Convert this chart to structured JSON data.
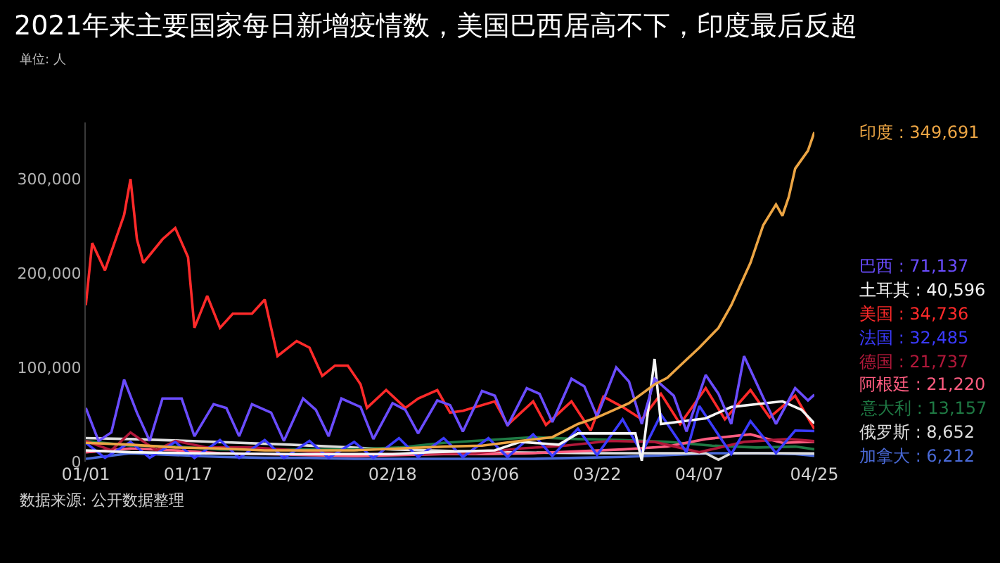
{
  "chart_data": {
    "type": "line",
    "title": "2021年来主要国家每日新增疫情数，美国巴西居高不下，印度最后反超",
    "subtitle": "单位: 人",
    "annotations": [
      "数据来源: 公开数据整理"
    ],
    "xlim": [
      "2021-01-01",
      "2021-04-25"
    ],
    "xticks": [
      {
        "value": "2021-01-01",
        "label": "01/01"
      },
      {
        "value": "2021-01-17",
        "label": "01/17"
      },
      {
        "value": "2021-02-02",
        "label": "02/02"
      },
      {
        "value": "2021-02-18",
        "label": "02/18"
      },
      {
        "value": "2021-03-06",
        "label": "03/06"
      },
      {
        "value": "2021-03-22",
        "label": "03/22"
      },
      {
        "value": "2021-04-07",
        "label": "04/07"
      },
      {
        "value": "2021-04-25",
        "label": "04/25"
      }
    ],
    "ylim": [
      0,
      360000
    ],
    "yticks": [
      0,
      {
        "value": 100000,
        "label": "100,000"
      },
      {
        "value": 200000,
        "label": "200,000"
      },
      {
        "value": 300000,
        "label": "300,000"
      }
    ],
    "series": [
      {
        "name": "印度 :",
        "color": "#eca544",
        "x": [
          "2021-01-01",
          "2021-01-08",
          "2021-01-15",
          "2021-01-22",
          "2021-01-29",
          "2021-02-05",
          "2021-02-12",
          "2021-02-19",
          "2021-02-26",
          "2021-03-04",
          "2021-03-10",
          "2021-03-15",
          "2021-03-19",
          "2021-03-22",
          "2021-03-24",
          "2021-03-27",
          "2021-03-31",
          "2021-04-02",
          "2021-04-04",
          "2021-04-07",
          "2021-04-10",
          "2021-04-12",
          "2021-04-15",
          "2021-04-17",
          "2021-04-19",
          "2021-04-20",
          "2021-04-21",
          "2021-04-22",
          "2021-04-24",
          "2021-04-25"
        ],
        "values": [
          20000,
          18000,
          15000,
          14000,
          12000,
          12000,
          12000,
          14000,
          16000,
          17000,
          22000,
          26000,
          40000,
          47000,
          53000,
          62000,
          82000,
          89000,
          102000,
          121000,
          142000,
          166000,
          211000,
          251000,
          273000,
          261000,
          281000,
          311000,
          330000,
          349691
        ],
        "value_labels": [
          null,
          null,
          null,
          null,
          null,
          null,
          null,
          null,
          null,
          null,
          null,
          null,
          null,
          null,
          null,
          null,
          null,
          null,
          null,
          null,
          null,
          null,
          null,
          null,
          null,
          null,
          null,
          null,
          null,
          "349,691"
        ]
      },
      {
        "name": "巴西 :",
        "color": "#6a4cff",
        "x": [
          "2021-01-01",
          "2021-01-03",
          "2021-01-05",
          "2021-01-07",
          "2021-01-09",
          "2021-01-11",
          "2021-01-13",
          "2021-01-16",
          "2021-01-18",
          "2021-01-21",
          "2021-01-23",
          "2021-01-25",
          "2021-01-27",
          "2021-01-30",
          "2021-02-01",
          "2021-02-04",
          "2021-02-06",
          "2021-02-08",
          "2021-02-10",
          "2021-02-13",
          "2021-02-15",
          "2021-02-18",
          "2021-02-20",
          "2021-02-22",
          "2021-02-25",
          "2021-02-27",
          "2021-03-01",
          "2021-03-04",
          "2021-03-06",
          "2021-03-08",
          "2021-03-11",
          "2021-03-13",
          "2021-03-15",
          "2021-03-18",
          "2021-03-20",
          "2021-03-22",
          "2021-03-25",
          "2021-03-27",
          "2021-03-29",
          "2021-03-31",
          "2021-04-03",
          "2021-04-05",
          "2021-04-08",
          "2021-04-10",
          "2021-04-12",
          "2021-04-14",
          "2021-04-17",
          "2021-04-19",
          "2021-04-22",
          "2021-04-24",
          "2021-04-25"
        ],
        "values": [
          57000,
          22000,
          31000,
          87000,
          52000,
          22000,
          67000,
          67000,
          27000,
          61000,
          57000,
          27000,
          61000,
          52000,
          22000,
          67000,
          55000,
          27000,
          67000,
          58000,
          24000,
          62000,
          55000,
          30000,
          65000,
          60000,
          32000,
          75000,
          70000,
          38000,
          78000,
          72000,
          42000,
          88000,
          80000,
          48000,
          100000,
          85000,
          40000,
          88000,
          70000,
          32000,
          92000,
          72000,
          40000,
          112000,
          68000,
          40000,
          78000,
          65000,
          71137
        ],
        "value_labels": [
          null,
          null,
          null,
          null,
          null,
          null,
          null,
          null,
          null,
          null,
          null,
          null,
          null,
          null,
          null,
          null,
          null,
          null,
          null,
          null,
          null,
          null,
          null,
          null,
          null,
          null,
          null,
          null,
          null,
          null,
          null,
          null,
          null,
          null,
          null,
          null,
          null,
          null,
          null,
          null,
          null,
          null,
          null,
          null,
          null,
          null,
          null,
          null,
          null,
          null,
          "71,137"
        ]
      },
      {
        "name": "土耳其 :",
        "color": "#f4f4f4",
        "x": [
          "2021-01-01",
          "2021-01-08",
          "2021-01-17",
          "2021-02-02",
          "2021-02-18",
          "2021-02-24",
          "2021-03-06",
          "2021-03-10",
          "2021-03-16",
          "2021-03-19",
          "2021-03-23",
          "2021-03-28",
          "2021-03-29",
          "2021-03-31",
          "2021-04-01",
          "2021-04-08",
          "2021-04-12",
          "2021-04-16",
          "2021-04-20",
          "2021-04-23",
          "2021-04-25"
        ],
        "values": [
          12000,
          10000,
          9000,
          8000,
          8000,
          10000,
          12000,
          21000,
          18000,
          30000,
          30000,
          30000,
          1000,
          109000,
          40000,
          46000,
          58000,
          61000,
          64000,
          55000,
          40596
        ],
        "value_labels": [
          null,
          null,
          null,
          null,
          null,
          null,
          null,
          null,
          null,
          null,
          null,
          null,
          null,
          null,
          null,
          null,
          null,
          null,
          null,
          null,
          "40,596"
        ]
      },
      {
        "name": "美国 :",
        "color": "#ff2a2a",
        "x": [
          "2021-01-01",
          "2021-01-02",
          "2021-01-04",
          "2021-01-07",
          "2021-01-08",
          "2021-01-09",
          "2021-01-10",
          "2021-01-13",
          "2021-01-15",
          "2021-01-17",
          "2021-01-18",
          "2021-01-20",
          "2021-01-22",
          "2021-01-24",
          "2021-01-27",
          "2021-01-29",
          "2021-01-31",
          "2021-02-03",
          "2021-02-05",
          "2021-02-07",
          "2021-02-09",
          "2021-02-11",
          "2021-02-13",
          "2021-02-14",
          "2021-02-17",
          "2021-02-20",
          "2021-02-22",
          "2021-02-25",
          "2021-02-27",
          "2021-03-01",
          "2021-03-06",
          "2021-03-08",
          "2021-03-12",
          "2021-03-14",
          "2021-03-18",
          "2021-03-21",
          "2021-03-23",
          "2021-03-26",
          "2021-03-29",
          "2021-04-01",
          "2021-04-04",
          "2021-04-08",
          "2021-04-11",
          "2021-04-15",
          "2021-04-18",
          "2021-04-22",
          "2021-04-25"
        ],
        "values": [
          166000,
          232000,
          203000,
          262000,
          300000,
          236000,
          211000,
          236000,
          248000,
          217000,
          142000,
          176000,
          142000,
          157000,
          157000,
          172000,
          112000,
          128000,
          121000,
          91000,
          102000,
          102000,
          82000,
          57000,
          76000,
          57000,
          67000,
          76000,
          52000,
          54000,
          64000,
          39000,
          64000,
          39000,
          64000,
          33000,
          69000,
          58000,
          45000,
          72000,
          40000,
          78000,
          45000,
          76000,
          47000,
          70000,
          34736
        ],
        "value_labels": [
          null,
          null,
          null,
          null,
          null,
          null,
          null,
          null,
          null,
          null,
          null,
          null,
          null,
          null,
          null,
          null,
          null,
          null,
          null,
          null,
          null,
          null,
          null,
          null,
          null,
          null,
          null,
          null,
          null,
          null,
          null,
          null,
          null,
          null,
          null,
          null,
          null,
          null,
          null,
          null,
          null,
          null,
          null,
          null,
          null,
          null,
          "34,736"
        ]
      },
      {
        "name": "法国 :",
        "color": "#3b3bff",
        "x": [
          "2021-01-01",
          "2021-01-04",
          "2021-01-08",
          "2021-01-11",
          "2021-01-15",
          "2021-01-18",
          "2021-01-22",
          "2021-01-25",
          "2021-01-29",
          "2021-02-01",
          "2021-02-05",
          "2021-02-08",
          "2021-02-12",
          "2021-02-15",
          "2021-02-19",
          "2021-02-22",
          "2021-02-26",
          "2021-03-01",
          "2021-03-05",
          "2021-03-08",
          "2021-03-12",
          "2021-03-15",
          "2021-03-19",
          "2021-03-22",
          "2021-03-26",
          "2021-03-29",
          "2021-04-01",
          "2021-04-05",
          "2021-04-07",
          "2021-04-12",
          "2021-04-15",
          "2021-04-19",
          "2021-04-22",
          "2021-04-25"
        ],
        "values": [
          20000,
          4000,
          21000,
          4000,
          21000,
          4000,
          23000,
          4000,
          23000,
          4000,
          22000,
          4000,
          21000,
          4000,
          25000,
          5000,
          25000,
          5000,
          25000,
          5000,
          29000,
          6000,
          35000,
          7000,
          45000,
          9000,
          50000,
          10000,
          59000,
          8000,
          43000,
          9000,
          33000,
          32485
        ],
        "value_labels": [
          null,
          null,
          null,
          null,
          null,
          null,
          null,
          null,
          null,
          null,
          null,
          null,
          null,
          null,
          null,
          null,
          null,
          null,
          null,
          null,
          null,
          null,
          null,
          null,
          null,
          null,
          null,
          null,
          null,
          null,
          null,
          null,
          null,
          "32,485"
        ]
      },
      {
        "name": "德国 :",
        "color": "#b0183a",
        "x": [
          "2021-01-01",
          "2021-01-05",
          "2021-01-08",
          "2021-01-12",
          "2021-01-15",
          "2021-01-20",
          "2021-01-27",
          "2021-02-03",
          "2021-02-10",
          "2021-02-17",
          "2021-02-24",
          "2021-03-03",
          "2021-03-10",
          "2021-03-17",
          "2021-03-24",
          "2021-03-31",
          "2021-04-07",
          "2021-04-14",
          "2021-04-21",
          "2021-04-25"
        ],
        "values": [
          22000,
          12000,
          31000,
          12000,
          22000,
          15000,
          15000,
          12000,
          8000,
          8000,
          9000,
          9000,
          14000,
          17000,
          22000,
          21000,
          10000,
          21000,
          24000,
          21737
        ],
        "value_labels": [
          null,
          null,
          null,
          null,
          null,
          null,
          null,
          null,
          null,
          null,
          null,
          null,
          null,
          null,
          null,
          null,
          null,
          null,
          null,
          "21,737"
        ]
      },
      {
        "name": "阿根廷 :",
        "color": "#ff5c80",
        "x": [
          "2021-01-01",
          "2021-01-08",
          "2021-01-15",
          "2021-01-22",
          "2021-01-29",
          "2021-02-05",
          "2021-02-12",
          "2021-02-19",
          "2021-02-26",
          "2021-03-05",
          "2021-03-12",
          "2021-03-19",
          "2021-03-26",
          "2021-04-02",
          "2021-04-08",
          "2021-04-15",
          "2021-04-20",
          "2021-04-25"
        ],
        "values": [
          10000,
          14000,
          12000,
          9000,
          8000,
          7000,
          6000,
          7000,
          8000,
          8000,
          9000,
          11000,
          13000,
          16000,
          24000,
          29000,
          20000,
          21220
        ],
        "value_labels": [
          null,
          null,
          null,
          null,
          null,
          null,
          null,
          null,
          null,
          null,
          null,
          null,
          null,
          null,
          null,
          null,
          null,
          "21,220"
        ]
      },
      {
        "name": "意大利 :",
        "color": "#1f7a44",
        "x": [
          "2021-01-01",
          "2021-01-08",
          "2021-01-15",
          "2021-01-22",
          "2021-01-29",
          "2021-02-05",
          "2021-02-12",
          "2021-02-19",
          "2021-02-26",
          "2021-03-05",
          "2021-03-12",
          "2021-03-19",
          "2021-03-26",
          "2021-04-02",
          "2021-04-09",
          "2021-04-16",
          "2021-04-22",
          "2021-04-25"
        ],
        "values": [
          22000,
          17000,
          16000,
          13000,
          13000,
          13000,
          13000,
          15000,
          20000,
          23000,
          26000,
          24000,
          23000,
          21000,
          17000,
          15000,
          16000,
          13157
        ],
        "value_labels": [
          null,
          null,
          null,
          null,
          null,
          null,
          null,
          null,
          null,
          null,
          null,
          null,
          null,
          null,
          null,
          null,
          null,
          "13,157"
        ]
      },
      {
        "name": "俄罗斯 :",
        "color": "#dcdcdc",
        "x": [
          "2021-01-01",
          "2021-01-08",
          "2021-01-17",
          "2021-02-02",
          "2021-02-18",
          "2021-03-06",
          "2021-03-22",
          "2021-04-08",
          "2021-04-10",
          "2021-04-12",
          "2021-04-20",
          "2021-04-25"
        ],
        "values": [
          25000,
          24000,
          22000,
          18000,
          13000,
          10000,
          9000,
          9000,
          2000,
          9000,
          9000,
          8652
        ],
        "value_labels": [
          null,
          null,
          null,
          null,
          null,
          null,
          null,
          null,
          null,
          null,
          null,
          "8,652"
        ]
      },
      {
        "name": "加拿大 :",
        "color": "#4a6ad8",
        "x": [
          "2021-01-01",
          "2021-01-08",
          "2021-01-15",
          "2021-01-22",
          "2021-01-29",
          "2021-02-05",
          "2021-02-12",
          "2021-02-19",
          "2021-02-26",
          "2021-03-05",
          "2021-03-12",
          "2021-03-19",
          "2021-03-26",
          "2021-04-02",
          "2021-04-09",
          "2021-04-16",
          "2021-04-22",
          "2021-04-25"
        ],
        "values": [
          3000,
          9000,
          7000,
          5000,
          4000,
          4000,
          3000,
          3000,
          3000,
          3000,
          3000,
          4000,
          5000,
          7000,
          9000,
          9000,
          8000,
          6212
        ],
        "value_labels": [
          null,
          null,
          null,
          null,
          null,
          null,
          null,
          null,
          null,
          null,
          null,
          null,
          null,
          null,
          null,
          null,
          null,
          "6,212"
        ]
      }
    ]
  }
}
